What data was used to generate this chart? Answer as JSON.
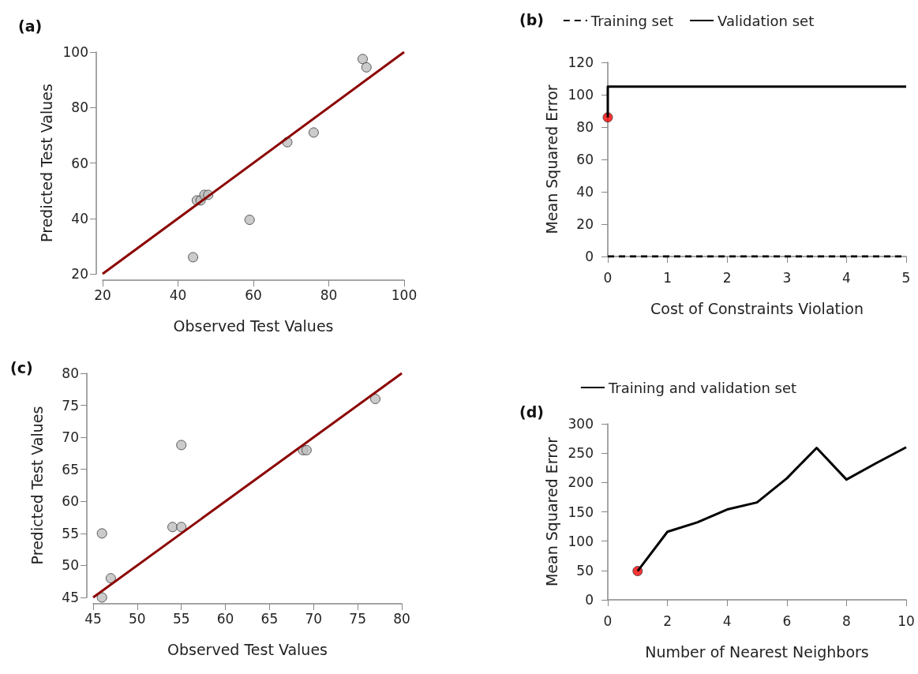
{
  "chart_data": [
    {
      "type": "scatter",
      "title": "(a)",
      "xlabel": "Observed Test Values",
      "ylabel": "Predicted Test Values",
      "xlim": [
        20,
        100
      ],
      "xticks": [
        20,
        40,
        60,
        80,
        100
      ],
      "ylim": [
        20,
        100
      ],
      "yticks": [
        20,
        40,
        60,
        80,
        100
      ],
      "grid": false,
      "series": [
        {
          "marker": "circle",
          "color": "#bebebe",
          "x": [
            44,
            45,
            46,
            47,
            48,
            59,
            69,
            76,
            89,
            90
          ],
          "values": [
            26,
            46.5,
            46.5,
            48.5,
            48.5,
            39.5,
            67.5,
            71,
            97.5,
            94.5
          ]
        },
        {
          "type": "line",
          "color": "#8b0000",
          "x": [
            20,
            100
          ],
          "values": [
            20,
            100
          ]
        }
      ]
    },
    {
      "type": "line",
      "title": "(b)",
      "xlabel": "Cost of Constraints Violation",
      "ylabel": "Mean Squared Error",
      "xlim": [
        0,
        5
      ],
      "xticks": [
        0,
        1,
        2,
        3,
        4,
        5
      ],
      "ylim": [
        0,
        120
      ],
      "yticks": [
        0,
        20,
        40,
        60,
        80,
        100,
        120
      ],
      "grid": false,
      "legend": "top",
      "series": [
        {
          "name": "Training set",
          "line_style": "dashed",
          "color": "#000000",
          "x": [
            0,
            5
          ],
          "values": [
            0,
            0
          ]
        },
        {
          "name": "Validation set",
          "type": "step",
          "line_style": "solid",
          "color": "#000000",
          "x": [
            0,
            5
          ],
          "values": [
            86,
            105
          ]
        },
        {
          "type": "scatter",
          "marker": "circle",
          "color": "#ff0000",
          "x": [
            0
          ],
          "values": [
            86
          ]
        }
      ]
    },
    {
      "type": "scatter",
      "title": "(c)",
      "xlabel": "Observed Test Values",
      "ylabel": "Predicted Test Values",
      "xlim": [
        45,
        80
      ],
      "xticks": [
        45,
        50,
        55,
        60,
        65,
        70,
        75,
        80
      ],
      "ylim": [
        45,
        80
      ],
      "yticks": [
        45,
        50,
        55,
        60,
        65,
        70,
        75,
        80
      ],
      "grid": false,
      "series": [
        {
          "marker": "circle",
          "color": "#bebebe",
          "x": [
            46,
            46,
            47,
            54,
            55,
            55,
            68.8,
            69.2,
            77
          ],
          "values": [
            45,
            55,
            48,
            56,
            56,
            68.8,
            68,
            68,
            76
          ]
        },
        {
          "type": "line",
          "color": "#8b0000",
          "x": [
            45,
            80
          ],
          "values": [
            45,
            80
          ]
        }
      ]
    },
    {
      "type": "line",
      "title": "(d)",
      "xlabel": "Number of Nearest Neighbors",
      "ylabel": "Mean Squared Error",
      "xlim": [
        0,
        10
      ],
      "xticks": [
        0,
        2,
        4,
        6,
        8,
        10
      ],
      "ylim": [
        0,
        300
      ],
      "yticks": [
        0,
        50,
        100,
        150,
        200,
        250,
        300
      ],
      "grid": false,
      "legend": "top",
      "series": [
        {
          "name": "Training and validation set",
          "line_style": "solid",
          "color": "#000000",
          "x": [
            1,
            2,
            3,
            4,
            5,
            6,
            7,
            8,
            9,
            10
          ],
          "values": [
            49,
            116,
            132,
            154,
            166,
            207,
            259,
            205,
            233,
            260
          ]
        },
        {
          "type": "scatter",
          "marker": "circle",
          "color": "#ff0000",
          "x": [
            1
          ],
          "values": [
            49
          ]
        }
      ]
    }
  ]
}
